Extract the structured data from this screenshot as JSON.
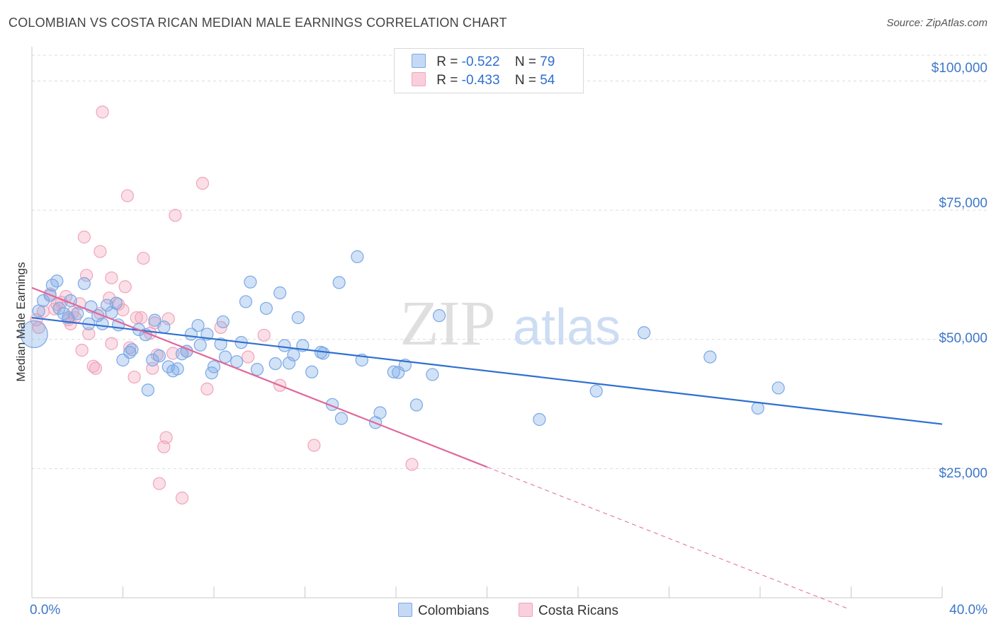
{
  "title": "COLOMBIAN VS COSTA RICAN MEDIAN MALE EARNINGS CORRELATION CHART",
  "source": "Source: ZipAtlas.com",
  "watermark": {
    "zip": "ZIP",
    "atlas": "atlas"
  },
  "legend": {
    "rows": [
      {
        "r_label": "R =",
        "r_value": "-0.522",
        "n_label": "N =",
        "n_value": "79"
      },
      {
        "r_label": "R =",
        "r_value": "-0.433",
        "n_label": "N =",
        "n_value": "54"
      }
    ]
  },
  "bottom_legend": {
    "colombians": "Colombians",
    "costa_ricans": "Costa Ricans"
  },
  "colors": {
    "blue": "#7aa8e6",
    "blue_line": "#2e6fd0",
    "pink": "#f2a3bb",
    "pink_line": "#e0679a",
    "tick_text": "#3d78c8"
  },
  "chart_data": {
    "type": "scatter",
    "title": "COLOMBIAN VS COSTA RICAN MEDIAN MALE EARNINGS CORRELATION CHART",
    "xlabel": "",
    "ylabel": "Median Male Earnings",
    "xlim": [
      0,
      40
    ],
    "ylim": [
      0,
      105000
    ],
    "x_tick_labels": [
      "0.0%",
      "40.0%"
    ],
    "y_ticks": [
      25000,
      50000,
      75000,
      100000
    ],
    "y_tick_labels": [
      "$25,000",
      "$50,000",
      "$75,000",
      "$100,000"
    ],
    "grid": "horizontal dashed",
    "legend_position": "top-center",
    "series": [
      {
        "name": "Colombians",
        "points": [
          [
            0.1,
            51000
          ],
          [
            0.3,
            55500
          ],
          [
            0.5,
            57500
          ],
          [
            0.8,
            58500
          ],
          [
            0.9,
            60500
          ],
          [
            1.1,
            61300
          ],
          [
            1.2,
            56000
          ],
          [
            1.4,
            55000
          ],
          [
            1.6,
            54200
          ],
          [
            1.7,
            57500
          ],
          [
            2.0,
            55000
          ],
          [
            2.3,
            60800
          ],
          [
            2.5,
            53000
          ],
          [
            2.6,
            56300
          ],
          [
            2.9,
            54600
          ],
          [
            3.1,
            53000
          ],
          [
            3.3,
            56600
          ],
          [
            3.5,
            55200
          ],
          [
            3.7,
            57000
          ],
          [
            3.8,
            52800
          ],
          [
            4.0,
            46000
          ],
          [
            4.3,
            47500
          ],
          [
            4.4,
            48000
          ],
          [
            4.7,
            51900
          ],
          [
            5.0,
            50900
          ],
          [
            5.1,
            40200
          ],
          [
            5.3,
            46000
          ],
          [
            5.4,
            53700
          ],
          [
            5.6,
            46800
          ],
          [
            5.8,
            52400
          ],
          [
            6.0,
            44700
          ],
          [
            6.2,
            43900
          ],
          [
            6.4,
            44300
          ],
          [
            6.6,
            47200
          ],
          [
            6.8,
            47700
          ],
          [
            7.0,
            51000
          ],
          [
            7.3,
            52700
          ],
          [
            7.4,
            48900
          ],
          [
            7.7,
            51000
          ],
          [
            7.9,
            43500
          ],
          [
            8.0,
            44700
          ],
          [
            8.3,
            49100
          ],
          [
            8.4,
            53400
          ],
          [
            8.5,
            46600
          ],
          [
            9.0,
            45700
          ],
          [
            9.2,
            49400
          ],
          [
            9.4,
            57300
          ],
          [
            9.6,
            61100
          ],
          [
            9.9,
            44200
          ],
          [
            10.3,
            56000
          ],
          [
            10.7,
            45300
          ],
          [
            10.9,
            59000
          ],
          [
            11.1,
            48800
          ],
          [
            11.3,
            45400
          ],
          [
            11.5,
            47000
          ],
          [
            11.7,
            54200
          ],
          [
            11.9,
            48800
          ],
          [
            12.3,
            43700
          ],
          [
            12.7,
            47500
          ],
          [
            12.8,
            47300
          ],
          [
            13.2,
            37400
          ],
          [
            13.5,
            61000
          ],
          [
            13.6,
            34700
          ],
          [
            14.3,
            66000
          ],
          [
            14.5,
            46000
          ],
          [
            15.1,
            33900
          ],
          [
            15.3,
            35800
          ],
          [
            15.9,
            43700
          ],
          [
            16.1,
            43600
          ],
          [
            16.4,
            45000
          ],
          [
            16.9,
            37300
          ],
          [
            17.6,
            43200
          ],
          [
            17.9,
            54600
          ],
          [
            22.3,
            34500
          ],
          [
            24.8,
            40000
          ],
          [
            26.9,
            51300
          ],
          [
            29.8,
            46600
          ],
          [
            31.9,
            36700
          ],
          [
            32.8,
            40600
          ]
        ],
        "trendline": {
          "x": [
            0,
            40
          ],
          "y": [
            54200,
            33600
          ]
        }
      },
      {
        "name": "Costa Ricans",
        "points": [
          [
            0.2,
            53800
          ],
          [
            0.3,
            52300
          ],
          [
            0.5,
            55400
          ],
          [
            0.8,
            58800
          ],
          [
            1.0,
            55900
          ],
          [
            1.1,
            56800
          ],
          [
            1.3,
            57200
          ],
          [
            1.5,
            58300
          ],
          [
            1.6,
            53800
          ],
          [
            1.7,
            53000
          ],
          [
            1.8,
            55200
          ],
          [
            1.9,
            54200
          ],
          [
            2.1,
            56900
          ],
          [
            2.2,
            47900
          ],
          [
            2.3,
            69800
          ],
          [
            2.4,
            62400
          ],
          [
            2.5,
            51100
          ],
          [
            2.7,
            44800
          ],
          [
            2.8,
            44400
          ],
          [
            3.0,
            55000
          ],
          [
            3.0,
            67000
          ],
          [
            3.1,
            94000
          ],
          [
            3.4,
            58000
          ],
          [
            3.5,
            61900
          ],
          [
            3.5,
            49200
          ],
          [
            3.8,
            56800
          ],
          [
            4.0,
            55700
          ],
          [
            4.1,
            60200
          ],
          [
            4.2,
            77800
          ],
          [
            4.3,
            48400
          ],
          [
            4.5,
            42700
          ],
          [
            4.6,
            54200
          ],
          [
            4.8,
            54200
          ],
          [
            4.9,
            65700
          ],
          [
            5.2,
            51200
          ],
          [
            5.3,
            44400
          ],
          [
            5.4,
            53200
          ],
          [
            5.5,
            47000
          ],
          [
            5.6,
            22100
          ],
          [
            5.8,
            29200
          ],
          [
            5.9,
            31000
          ],
          [
            6.0,
            54000
          ],
          [
            6.2,
            47300
          ],
          [
            6.3,
            74000
          ],
          [
            6.6,
            19300
          ],
          [
            6.8,
            47700
          ],
          [
            7.5,
            80200
          ],
          [
            7.7,
            40400
          ],
          [
            8.3,
            52300
          ],
          [
            9.5,
            46600
          ],
          [
            10.2,
            50800
          ],
          [
            10.9,
            41100
          ],
          [
            12.4,
            29500
          ],
          [
            16.7,
            25800
          ]
        ],
        "trendline": {
          "x": [
            0,
            20
          ],
          "y": [
            60000,
            25300
          ]
        },
        "trendline_extension": {
          "x": [
            20,
            35.8
          ],
          "y": [
            25300,
            -2000
          ]
        }
      }
    ]
  }
}
